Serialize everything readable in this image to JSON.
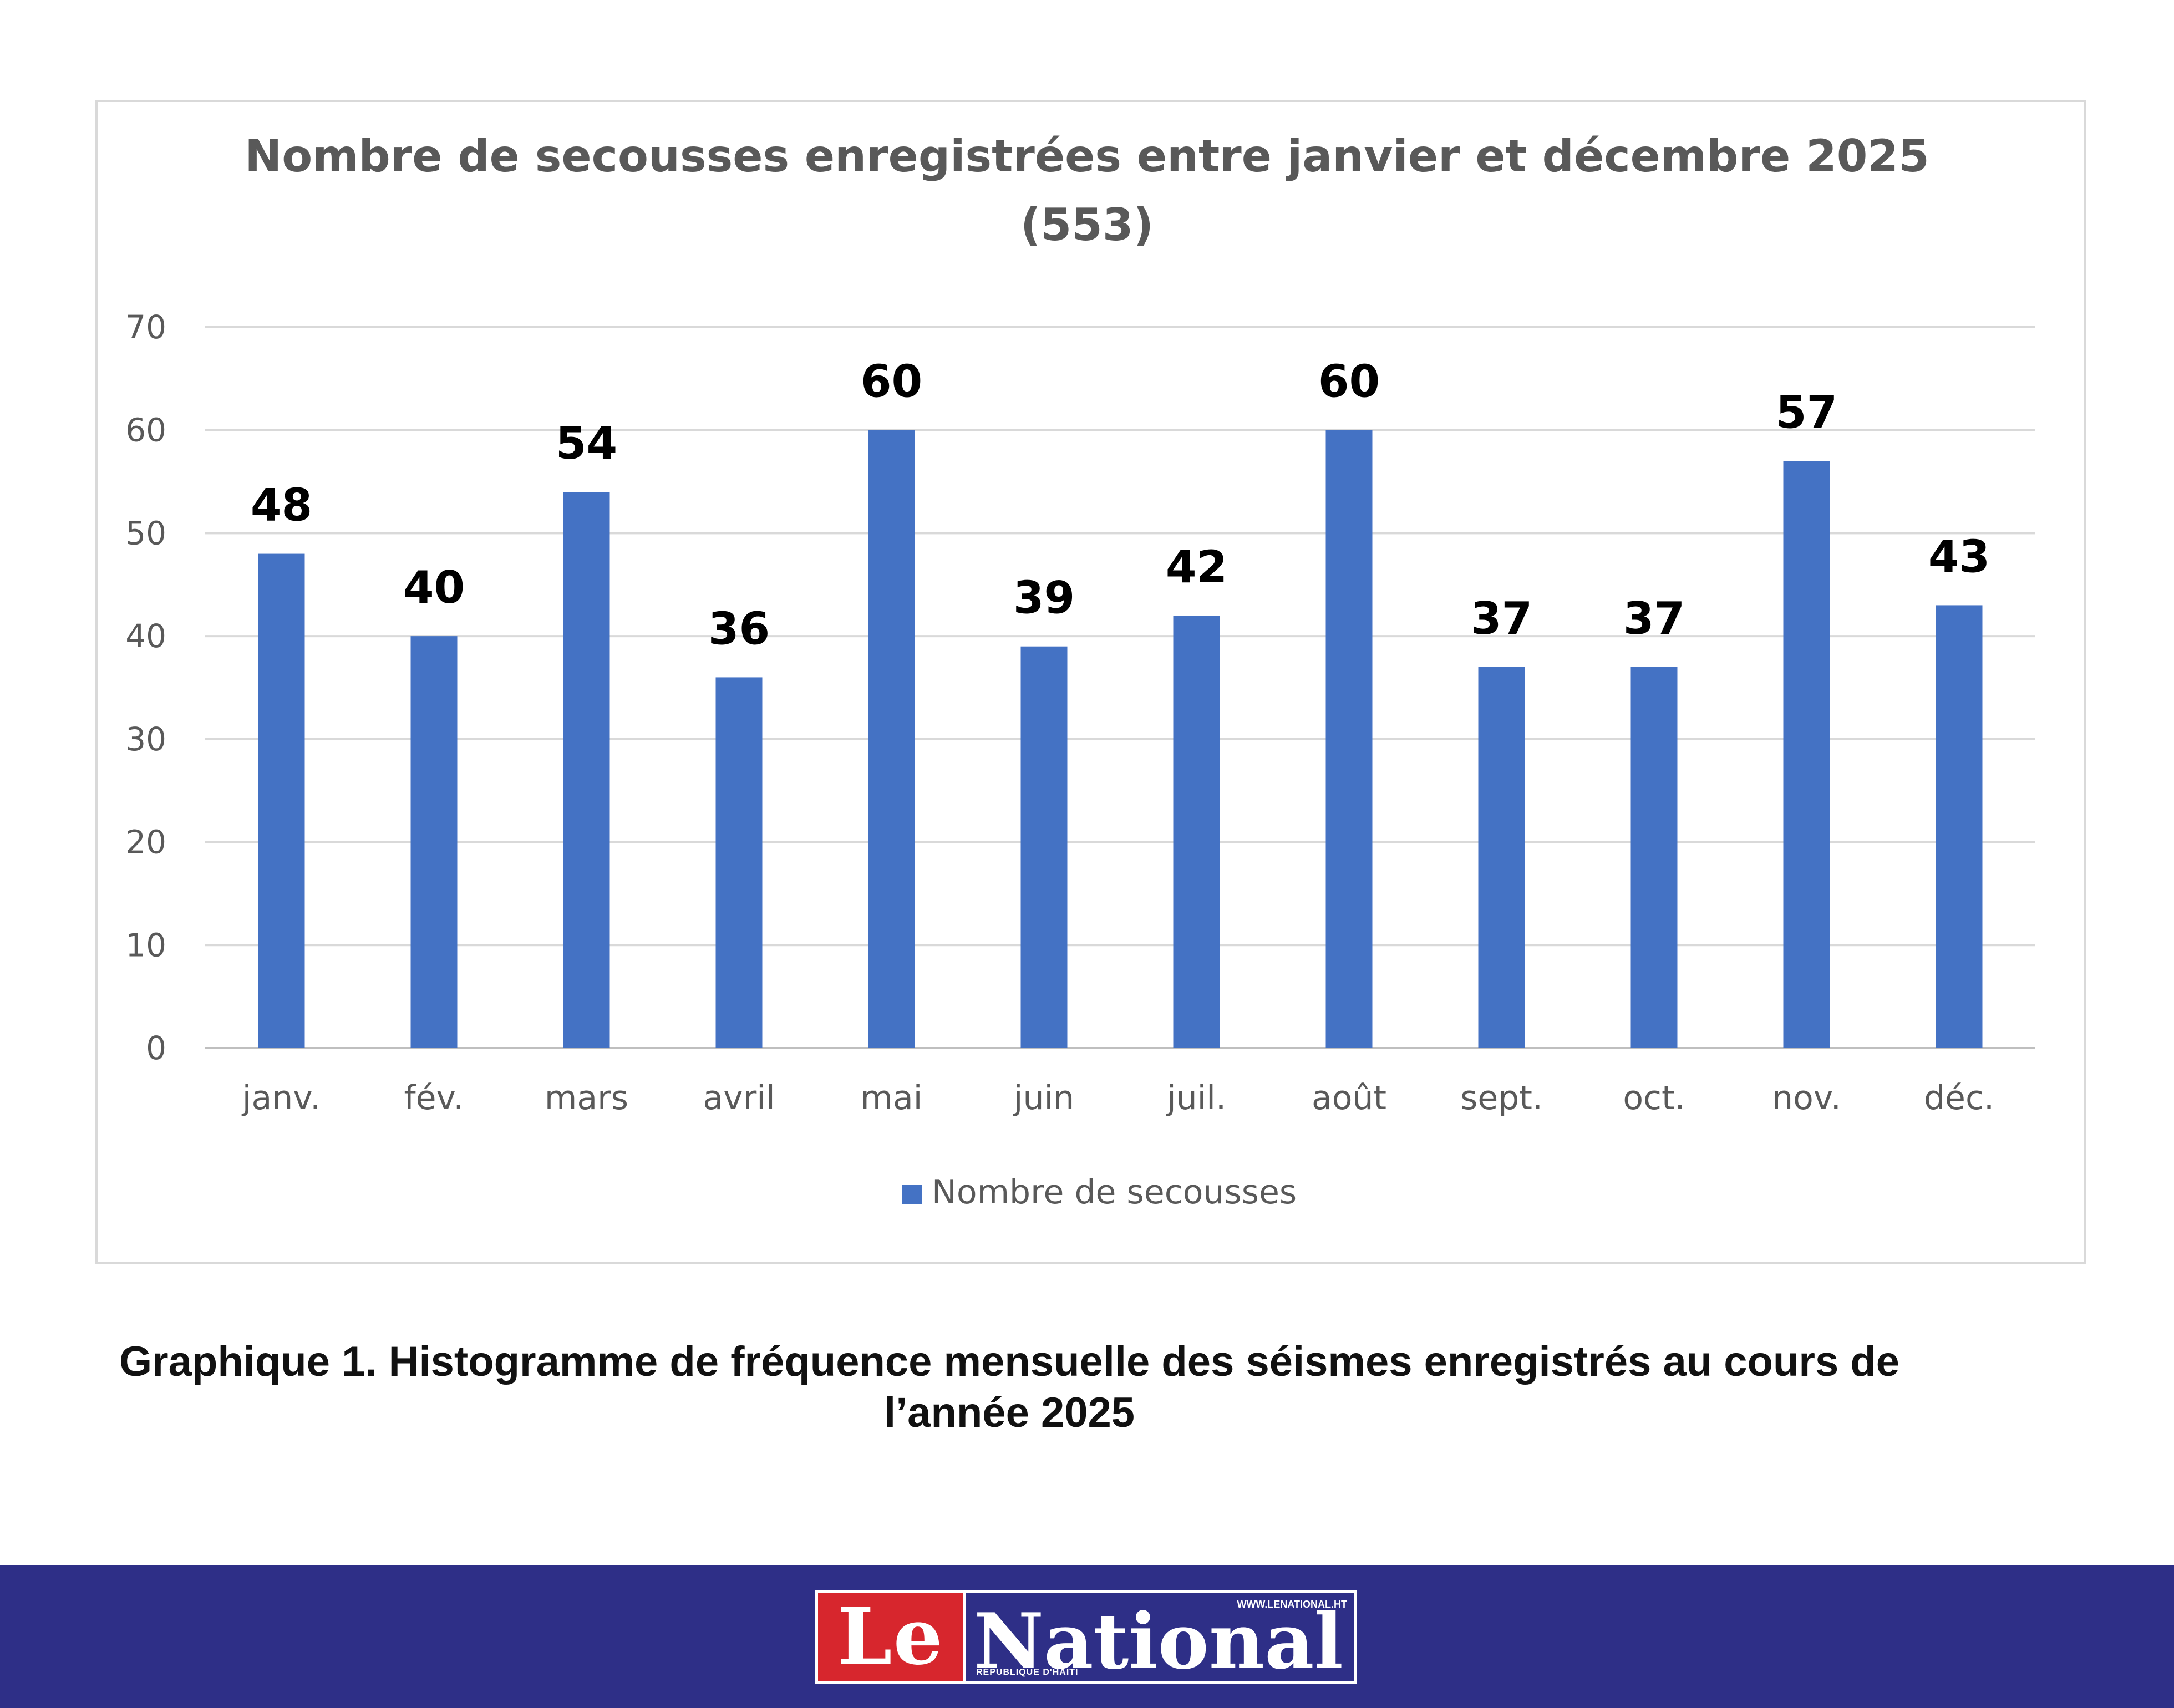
{
  "chart_data": {
    "type": "bar",
    "title": "Nombre de secousses enregistrées entre janvier et décembre 2025",
    "subtitle": "(553)",
    "categories": [
      "janv.",
      "fév.",
      "mars",
      "avril",
      "mai",
      "juin",
      "juil.",
      "août",
      "sept.",
      "oct.",
      "nov.",
      "déc."
    ],
    "series": [
      {
        "name": "Nombre de secousses",
        "values": [
          48,
          40,
          54,
          36,
          60,
          39,
          42,
          60,
          37,
          37,
          57,
          43
        ]
      }
    ],
    "y_ticks": [
      0,
      10,
      20,
      30,
      40,
      50,
      60,
      70
    ],
    "ylim": [
      0,
      70
    ],
    "grid": true,
    "legend": "bottom-center",
    "bar_color": "#4472c4"
  },
  "caption": {
    "line1": "Graphique 1. Histogramme de fréquence mensuelle des séismes enregistrés au cours de",
    "line2": "l’année 2025"
  },
  "footer": {
    "logo_le": "Le",
    "logo_national": "National",
    "logo_url": "WWW.LENATIONAL.HT",
    "logo_sub": "RÉPUBLIQUE D'HAITI",
    "band_color": "#2e2f87",
    "accent_color": "#d7262d"
  }
}
